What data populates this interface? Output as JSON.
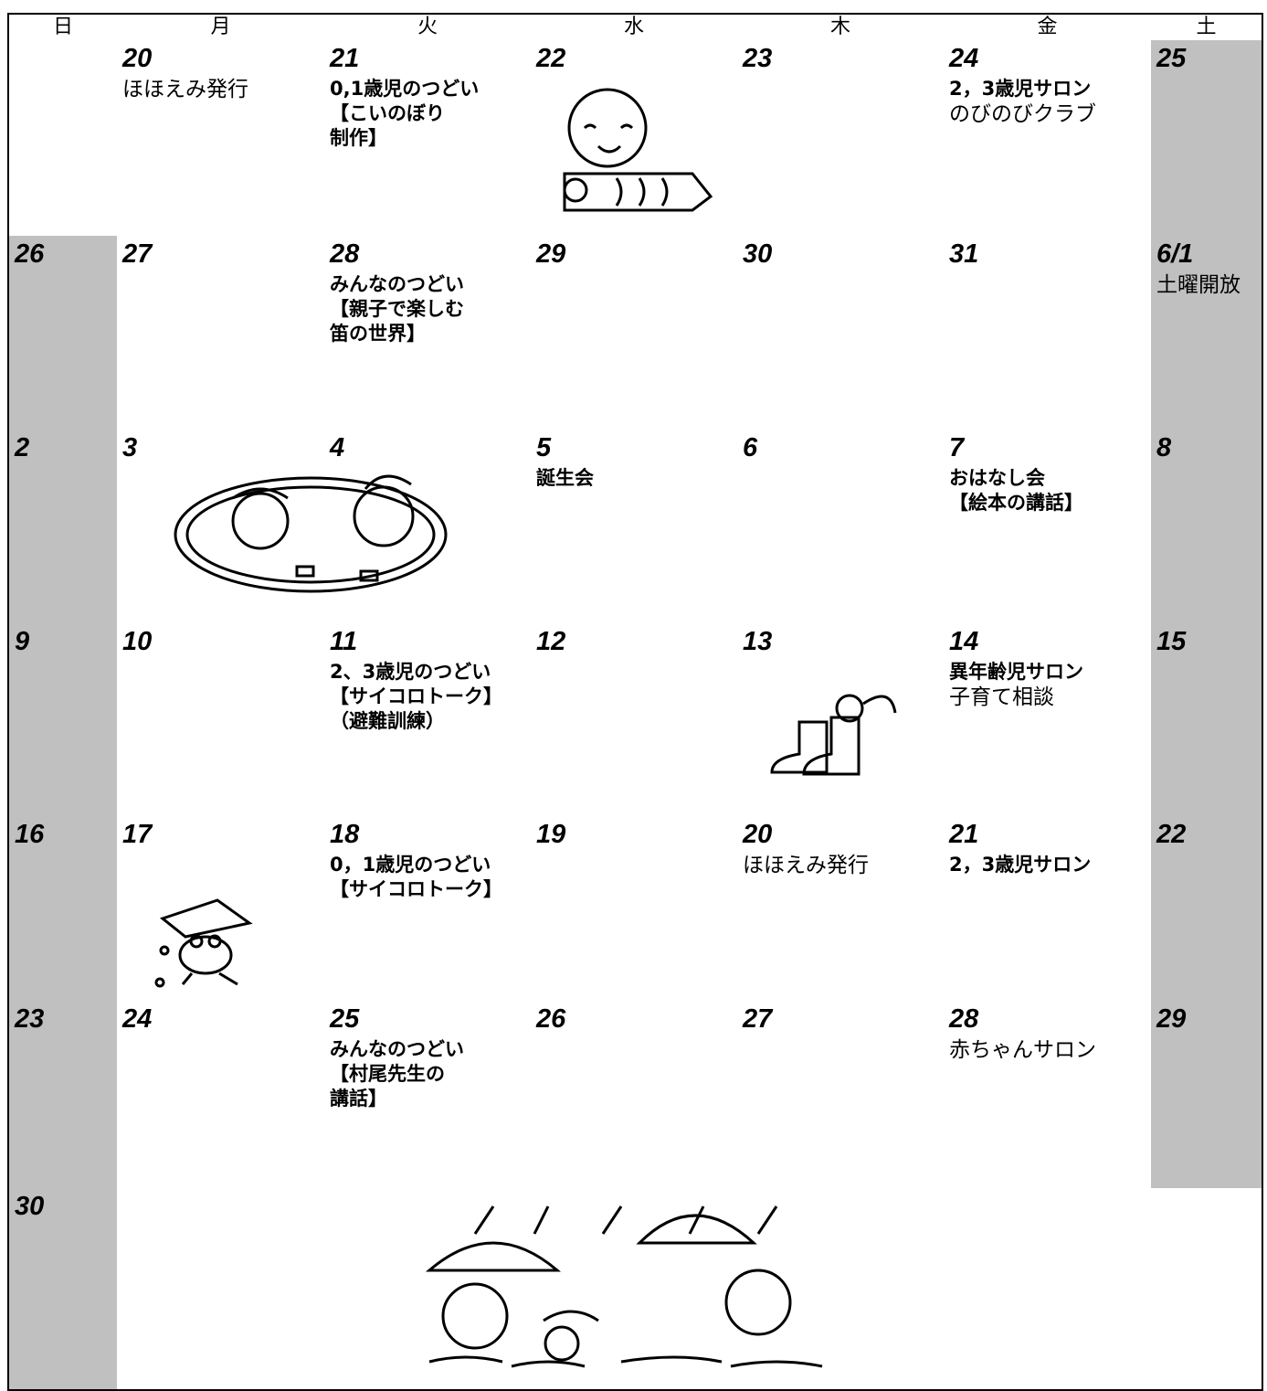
{
  "header": {
    "days": [
      "日",
      "月",
      "火",
      "水",
      "木",
      "金",
      "土"
    ]
  },
  "weeks": [
    {
      "days": [
        {},
        {
          "date": "20",
          "lines": [
            {
              "text": "ほほえみ発行",
              "bold": false
            }
          ]
        },
        {
          "date": "21",
          "lines": [
            {
              "text": "0,1歳児のつどい",
              "bold": true
            },
            {
              "text": "【こいのぼり",
              "bold": true
            },
            {
              "text": "制作】",
              "bold": true
            }
          ]
        },
        {
          "date": "22"
        },
        {
          "date": "23"
        },
        {
          "date": "24",
          "lines": [
            {
              "text": "2，3歳児サロン",
              "bold": true
            },
            {
              "text": "のびのびクラブ",
              "bold": false
            }
          ]
        },
        {
          "date": "25"
        }
      ]
    },
    {
      "days": [
        {
          "date": "26"
        },
        {
          "date": "27"
        },
        {
          "date": "28",
          "lines": [
            {
              "text": "みんなのつどい",
              "bold": true
            },
            {
              "text": "【親子で楽しむ",
              "bold": true
            },
            {
              "text": "笛の世界】",
              "bold": true
            }
          ]
        },
        {
          "date": "29"
        },
        {
          "date": "30"
        },
        {
          "date": "31"
        },
        {
          "date": "6/1",
          "lines": [
            {
              "text": "土曜開放",
              "bold": false
            }
          ]
        }
      ]
    },
    {
      "days": [
        {
          "date": "2"
        },
        {
          "date": "3"
        },
        {
          "date": "4"
        },
        {
          "date": "5",
          "lines": [
            {
              "text": "誕生会",
              "bold": true
            }
          ]
        },
        {
          "date": "6"
        },
        {
          "date": "7",
          "lines": [
            {
              "text": "おはなし会",
              "bold": true
            },
            {
              "text": "【絵本の講話】",
              "bold": true
            }
          ]
        },
        {
          "date": "8"
        }
      ]
    },
    {
      "days": [
        {
          "date": "9"
        },
        {
          "date": "10"
        },
        {
          "date": "11",
          "lines": [
            {
              "text": "2、3歳児のつどい",
              "bold": true
            },
            {
              "text": "【サイコロトーク】",
              "bold": true
            },
            {
              "text": "（避難訓練）",
              "bold": true
            }
          ]
        },
        {
          "date": "12"
        },
        {
          "date": "13"
        },
        {
          "date": "14",
          "lines": [
            {
              "text": "異年齢児サロン",
              "bold": true
            },
            {
              "text": "子育て相談",
              "bold": false
            }
          ]
        },
        {
          "date": "15"
        }
      ]
    },
    {
      "days": [
        {
          "date": "16"
        },
        {
          "date": "17"
        },
        {
          "date": "18",
          "lines": [
            {
              "text": "0，1歳児のつどい",
              "bold": true
            },
            {
              "text": "【サイコロトーク】",
              "bold": true
            }
          ]
        },
        {
          "date": "19"
        },
        {
          "date": "20",
          "lines": [
            {
              "text": "ほほえみ発行",
              "bold": false
            }
          ]
        },
        {
          "date": "21",
          "lines": [
            {
              "text": "2，3歳児サロン",
              "bold": true
            }
          ]
        },
        {
          "date": "22"
        }
      ]
    },
    {
      "days": [
        {
          "date": "23"
        },
        {
          "date": "24"
        },
        {
          "date": "25",
          "lines": [
            {
              "text": "みんなのつどい",
              "bold": true
            },
            {
              "text": "【村尾先生の",
              "bold": true
            },
            {
              "text": "講話】",
              "bold": true
            }
          ]
        },
        {
          "date": "26"
        },
        {
          "date": "27"
        },
        {
          "date": "28",
          "lines": [
            {
              "text": "赤ちゃんサロン",
              "bold": false
            }
          ]
        },
        {
          "date": "29"
        }
      ]
    },
    {
      "days": [
        {
          "date": "30"
        },
        {},
        {},
        {},
        {},
        {},
        {}
      ]
    }
  ]
}
